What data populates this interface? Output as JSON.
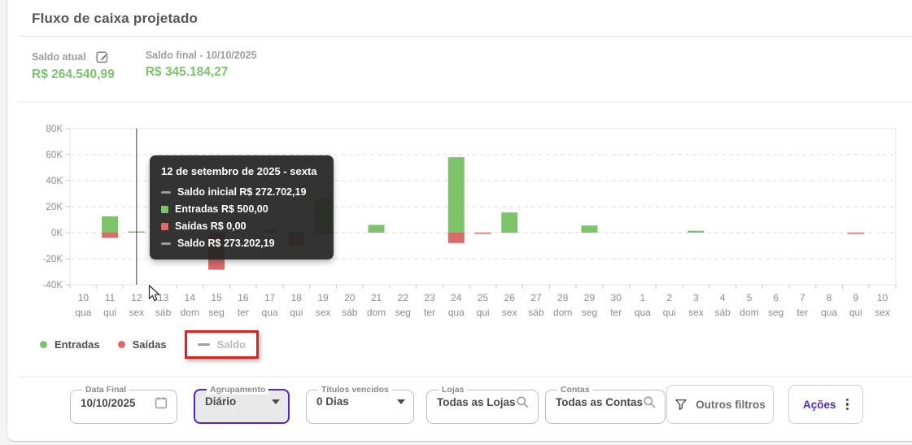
{
  "header": {
    "title": "Fluxo de caixa projetado",
    "saldo_atual_label": "Saldo atual",
    "saldo_atual_value": "R$ 264.540,99",
    "saldo_final_label": "Saldo final - 10/10/2025",
    "saldo_final_value": "R$ 345.184,27"
  },
  "chart_data": {
    "type": "bar",
    "title": "Fluxo de caixa projetado",
    "xlabel": "",
    "ylabel": "",
    "ylim": [
      -40000,
      80000
    ],
    "grid": "horizontal dashed",
    "legend_position": "bottom-left",
    "y_ticks": [
      {
        "value": 80000,
        "label": "80K"
      },
      {
        "value": 60000,
        "label": "60K"
      },
      {
        "value": 40000,
        "label": "40K"
      },
      {
        "value": 20000,
        "label": "20K"
      },
      {
        "value": 0,
        "label": "0K"
      },
      {
        "value": -20000,
        "label": "-20K"
      },
      {
        "value": -40000,
        "label": "-40K"
      }
    ],
    "categories_day": [
      "10",
      "11",
      "12",
      "13",
      "14",
      "15",
      "16",
      "17",
      "18",
      "19",
      "20",
      "21",
      "22",
      "23",
      "24",
      "25",
      "26",
      "27",
      "28",
      "29",
      "30",
      "1",
      "2",
      "3",
      "4",
      "5",
      "6",
      "7",
      "8",
      "9",
      "10"
    ],
    "categories_weekday": [
      "qua",
      "qui",
      "sex",
      "sáb",
      "dom",
      "seg",
      "ter",
      "qua",
      "qui",
      "sex",
      "sáb",
      "dom",
      "seg",
      "ter",
      "qua",
      "qui",
      "sex",
      "sáb",
      "dom",
      "seg",
      "ter",
      "qua",
      "qui",
      "sex",
      "sáb",
      "dom",
      "seg",
      "ter",
      "qua",
      "qui",
      "sex"
    ],
    "series": [
      {
        "name": "Entradas",
        "color": "#7cc369",
        "values": [
          0,
          12500,
          500,
          0,
          0,
          0,
          0,
          2000,
          0,
          26000,
          0,
          6000,
          0,
          0,
          58000,
          0,
          15500,
          0,
          0,
          5500,
          0,
          0,
          0,
          1500,
          0,
          0,
          0,
          0,
          0,
          0,
          0
        ]
      },
      {
        "name": "Saídas",
        "color": "#d96b6b",
        "values": [
          0,
          -4000,
          0,
          0,
          0,
          -28500,
          0,
          0,
          -10000,
          -700,
          0,
          0,
          0,
          0,
          -8000,
          -600,
          0,
          0,
          0,
          0,
          0,
          0,
          0,
          0,
          0,
          0,
          0,
          0,
          0,
          -400,
          0
        ]
      }
    ],
    "hover_index": 2
  },
  "tooltip": {
    "title": "12 de setembro de 2025 - sexta",
    "rows": [
      {
        "marker": "dash",
        "color": "#9b9b9b",
        "label": "Saldo inicial R$ 272.702,19"
      },
      {
        "marker": "square",
        "color": "#7cc369",
        "label": "Entradas R$ 500,00"
      },
      {
        "marker": "square",
        "color": "#d96b6b",
        "label": "Saídas R$ 0,00"
      },
      {
        "marker": "dash",
        "color": "#9b9b9b",
        "label": "Saldo R$ 273.202,19"
      }
    ]
  },
  "legend": {
    "items": [
      {
        "label": "Entradas",
        "marker": "dot",
        "color": "#7cc369",
        "disabled": false,
        "highlighted": false
      },
      {
        "label": "Saídas",
        "marker": "dot",
        "color": "#d96b6b",
        "disabled": false,
        "highlighted": false
      },
      {
        "label": "Saldo",
        "marker": "dash",
        "color": "#9e9e9e",
        "disabled": true,
        "highlighted": true
      }
    ],
    "highlight_color": "#e2201d"
  },
  "filters": {
    "data_final": {
      "label": "Data Final",
      "value": "10/10/2025"
    },
    "agrupamento": {
      "label": "Agrupamento",
      "value": "Diário"
    },
    "titulos_vencidos": {
      "label": "Títulos vencidos",
      "value": "0 Dias"
    },
    "lojas": {
      "label": "Lojas",
      "value": "Todas as Lojas"
    },
    "contas": {
      "label": "Contas",
      "value": "Todas as Contas"
    },
    "outros_filtros_label": "Outros filtros",
    "acoes_label": "Ações"
  },
  "colors": {
    "positive_green": "#7cc36b",
    "negative_red": "#d96b6b",
    "accent_purple": "#5126c3",
    "annotation_red": "#e2201d",
    "axis_text": "#8d8d8d",
    "tooltip_bg": "#242424"
  }
}
